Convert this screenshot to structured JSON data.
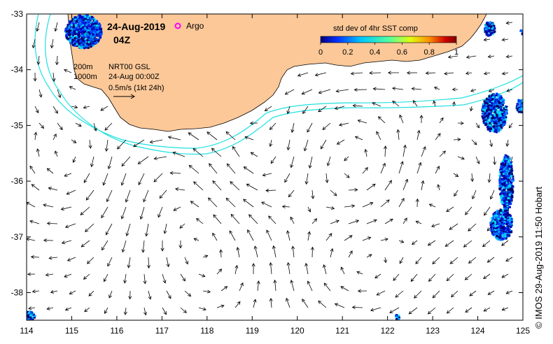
{
  "map": {
    "date": "24-Aug-2019",
    "time": "04Z",
    "argo_label": "Argo",
    "colorbar": {
      "title": "std dev of 4hr SST comp",
      "ticks": [
        "0",
        "0.2",
        "0.4",
        "0.6",
        "0.8",
        "1"
      ],
      "colors": [
        "#00007f",
        "#0030ff",
        "#00c8ff",
        "#50ffa0",
        "#e0ff10",
        "#ff9000",
        "#d00000",
        "#7f0000"
      ]
    },
    "legend": {
      "depth1": "200m",
      "depth2": "1000m",
      "product": "NRT00 GSL",
      "valid_time": "24-Aug 00:00Z",
      "scale": "0.5m/s (1kt 24h)"
    },
    "x_ticks": [
      "114",
      "115",
      "116",
      "117",
      "118",
      "119",
      "120",
      "121",
      "122",
      "123",
      "124",
      "125"
    ],
    "y_ticks": [
      "-33",
      "-34",
      "-35",
      "-36",
      "-37",
      "-38"
    ],
    "credit": "© IMOS 29-Aug-2019 11:50 Hobart",
    "colors": {
      "land": "#fcc898",
      "isobath": "#20e0e0",
      "argo": "#ff00ff"
    }
  }
}
